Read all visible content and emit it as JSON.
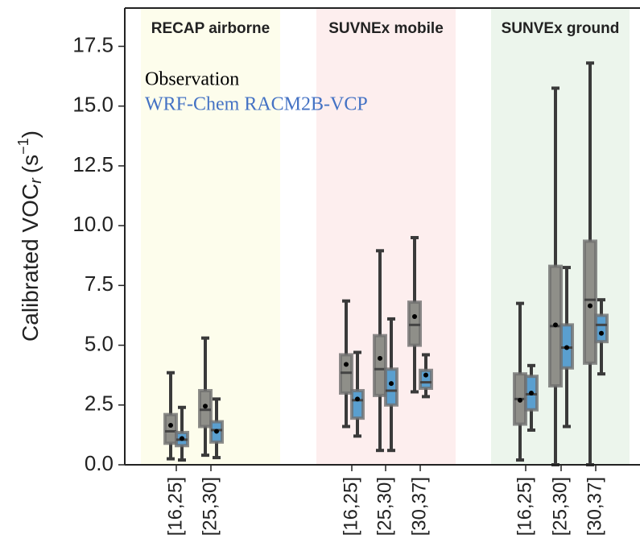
{
  "chart_data": {
    "type": "box",
    "ylabel": {
      "text": "Calibrated VOC",
      "sub": "r",
      "unit": "(s",
      "sup": "−1",
      "close": ")"
    },
    "categories": [
      "[16,25]",
      "[25,30]",
      "[16,25]",
      "[25,30]",
      "[30,37]",
      "[16,25]",
      "[25,30]",
      "[30,37]"
    ],
    "groups": [
      {
        "label": "RECAP airborne",
        "color": "#fdfdec",
        "categories": [
          0,
          1
        ]
      },
      {
        "label": "SUVNEx mobile",
        "color": "#fdeeee",
        "categories": [
          2,
          3,
          4
        ]
      },
      {
        "label": "SUNVEx ground",
        "color": "#ecf5ec",
        "categories": [
          5,
          6,
          7
        ]
      }
    ],
    "series": [
      {
        "name": "Observation",
        "color": "#8f8f89",
        "legend_color": "#000000",
        "boxes": [
          {
            "whislo": 0.25,
            "q1": 0.9,
            "med": 1.4,
            "q3": 2.1,
            "whishi": 3.85,
            "mean": 1.65
          },
          {
            "whislo": 0.4,
            "q1": 1.6,
            "med": 2.3,
            "q3": 3.1,
            "whishi": 5.3,
            "mean": 2.45
          },
          {
            "whislo": 1.6,
            "q1": 3.0,
            "med": 3.85,
            "q3": 4.6,
            "whishi": 6.85,
            "mean": 4.2
          },
          {
            "whislo": 0.6,
            "q1": 2.9,
            "med": 4.0,
            "q3": 5.4,
            "whishi": 8.95,
            "mean": 4.45
          },
          {
            "whislo": 3.05,
            "q1": 5.0,
            "med": 5.85,
            "q3": 6.8,
            "whishi": 9.5,
            "mean": 6.2
          },
          {
            "whislo": 0.2,
            "q1": 1.7,
            "med": 2.75,
            "q3": 3.8,
            "whishi": 6.75,
            "mean": 2.7
          },
          {
            "whislo": 0,
            "q1": 3.3,
            "med": 5.8,
            "q3": 8.3,
            "whishi": 15.75,
            "mean": 5.85
          },
          {
            "whislo": 0,
            "q1": 4.25,
            "med": 6.9,
            "q3": 9.35,
            "whishi": 16.8,
            "mean": 6.65
          }
        ]
      },
      {
        "name": "WRF-Chem RACM2B-VCP",
        "color": "#5a9fcf",
        "legend_color": "#4472c4",
        "boxes": [
          {
            "whislo": 0.2,
            "q1": 0.8,
            "med": 1.05,
            "q3": 1.35,
            "whishi": 2.4,
            "mean": 1.1
          },
          {
            "whislo": 0.3,
            "q1": 0.95,
            "med": 1.45,
            "q3": 1.8,
            "whishi": 2.75,
            "mean": 1.4
          },
          {
            "whislo": 1.2,
            "q1": 1.95,
            "med": 2.7,
            "q3": 3.1,
            "whishi": 4.7,
            "mean": 2.75
          },
          {
            "whislo": 0.6,
            "q1": 2.5,
            "med": 3.1,
            "q3": 4.0,
            "whishi": 6.1,
            "mean": 3.4
          },
          {
            "whislo": 2.85,
            "q1": 3.2,
            "med": 3.45,
            "q3": 3.95,
            "whishi": 4.6,
            "mean": 3.75
          },
          {
            "whislo": 1.45,
            "q1": 2.3,
            "med": 2.95,
            "q3": 3.7,
            "whishi": 4.15,
            "mean": 3.0
          },
          {
            "whislo": 1.6,
            "q1": 4.05,
            "med": 4.9,
            "q3": 5.85,
            "whishi": 8.25,
            "mean": 4.9
          },
          {
            "whislo": 3.8,
            "q1": 5.15,
            "med": 5.85,
            "q3": 6.25,
            "whishi": 6.9,
            "mean": 5.5
          }
        ]
      }
    ],
    "legend": "upper left",
    "ylim": [
      0,
      19.1
    ],
    "yticks": [
      {
        "value": 0,
        "label": "0.0"
      },
      2.5,
      {
        "value": 5,
        "label": "5.0"
      },
      7.5,
      {
        "value": 10,
        "label": "10.0"
      },
      12.5,
      {
        "value": 15,
        "label": "15.0"
      },
      17.5
    ]
  }
}
